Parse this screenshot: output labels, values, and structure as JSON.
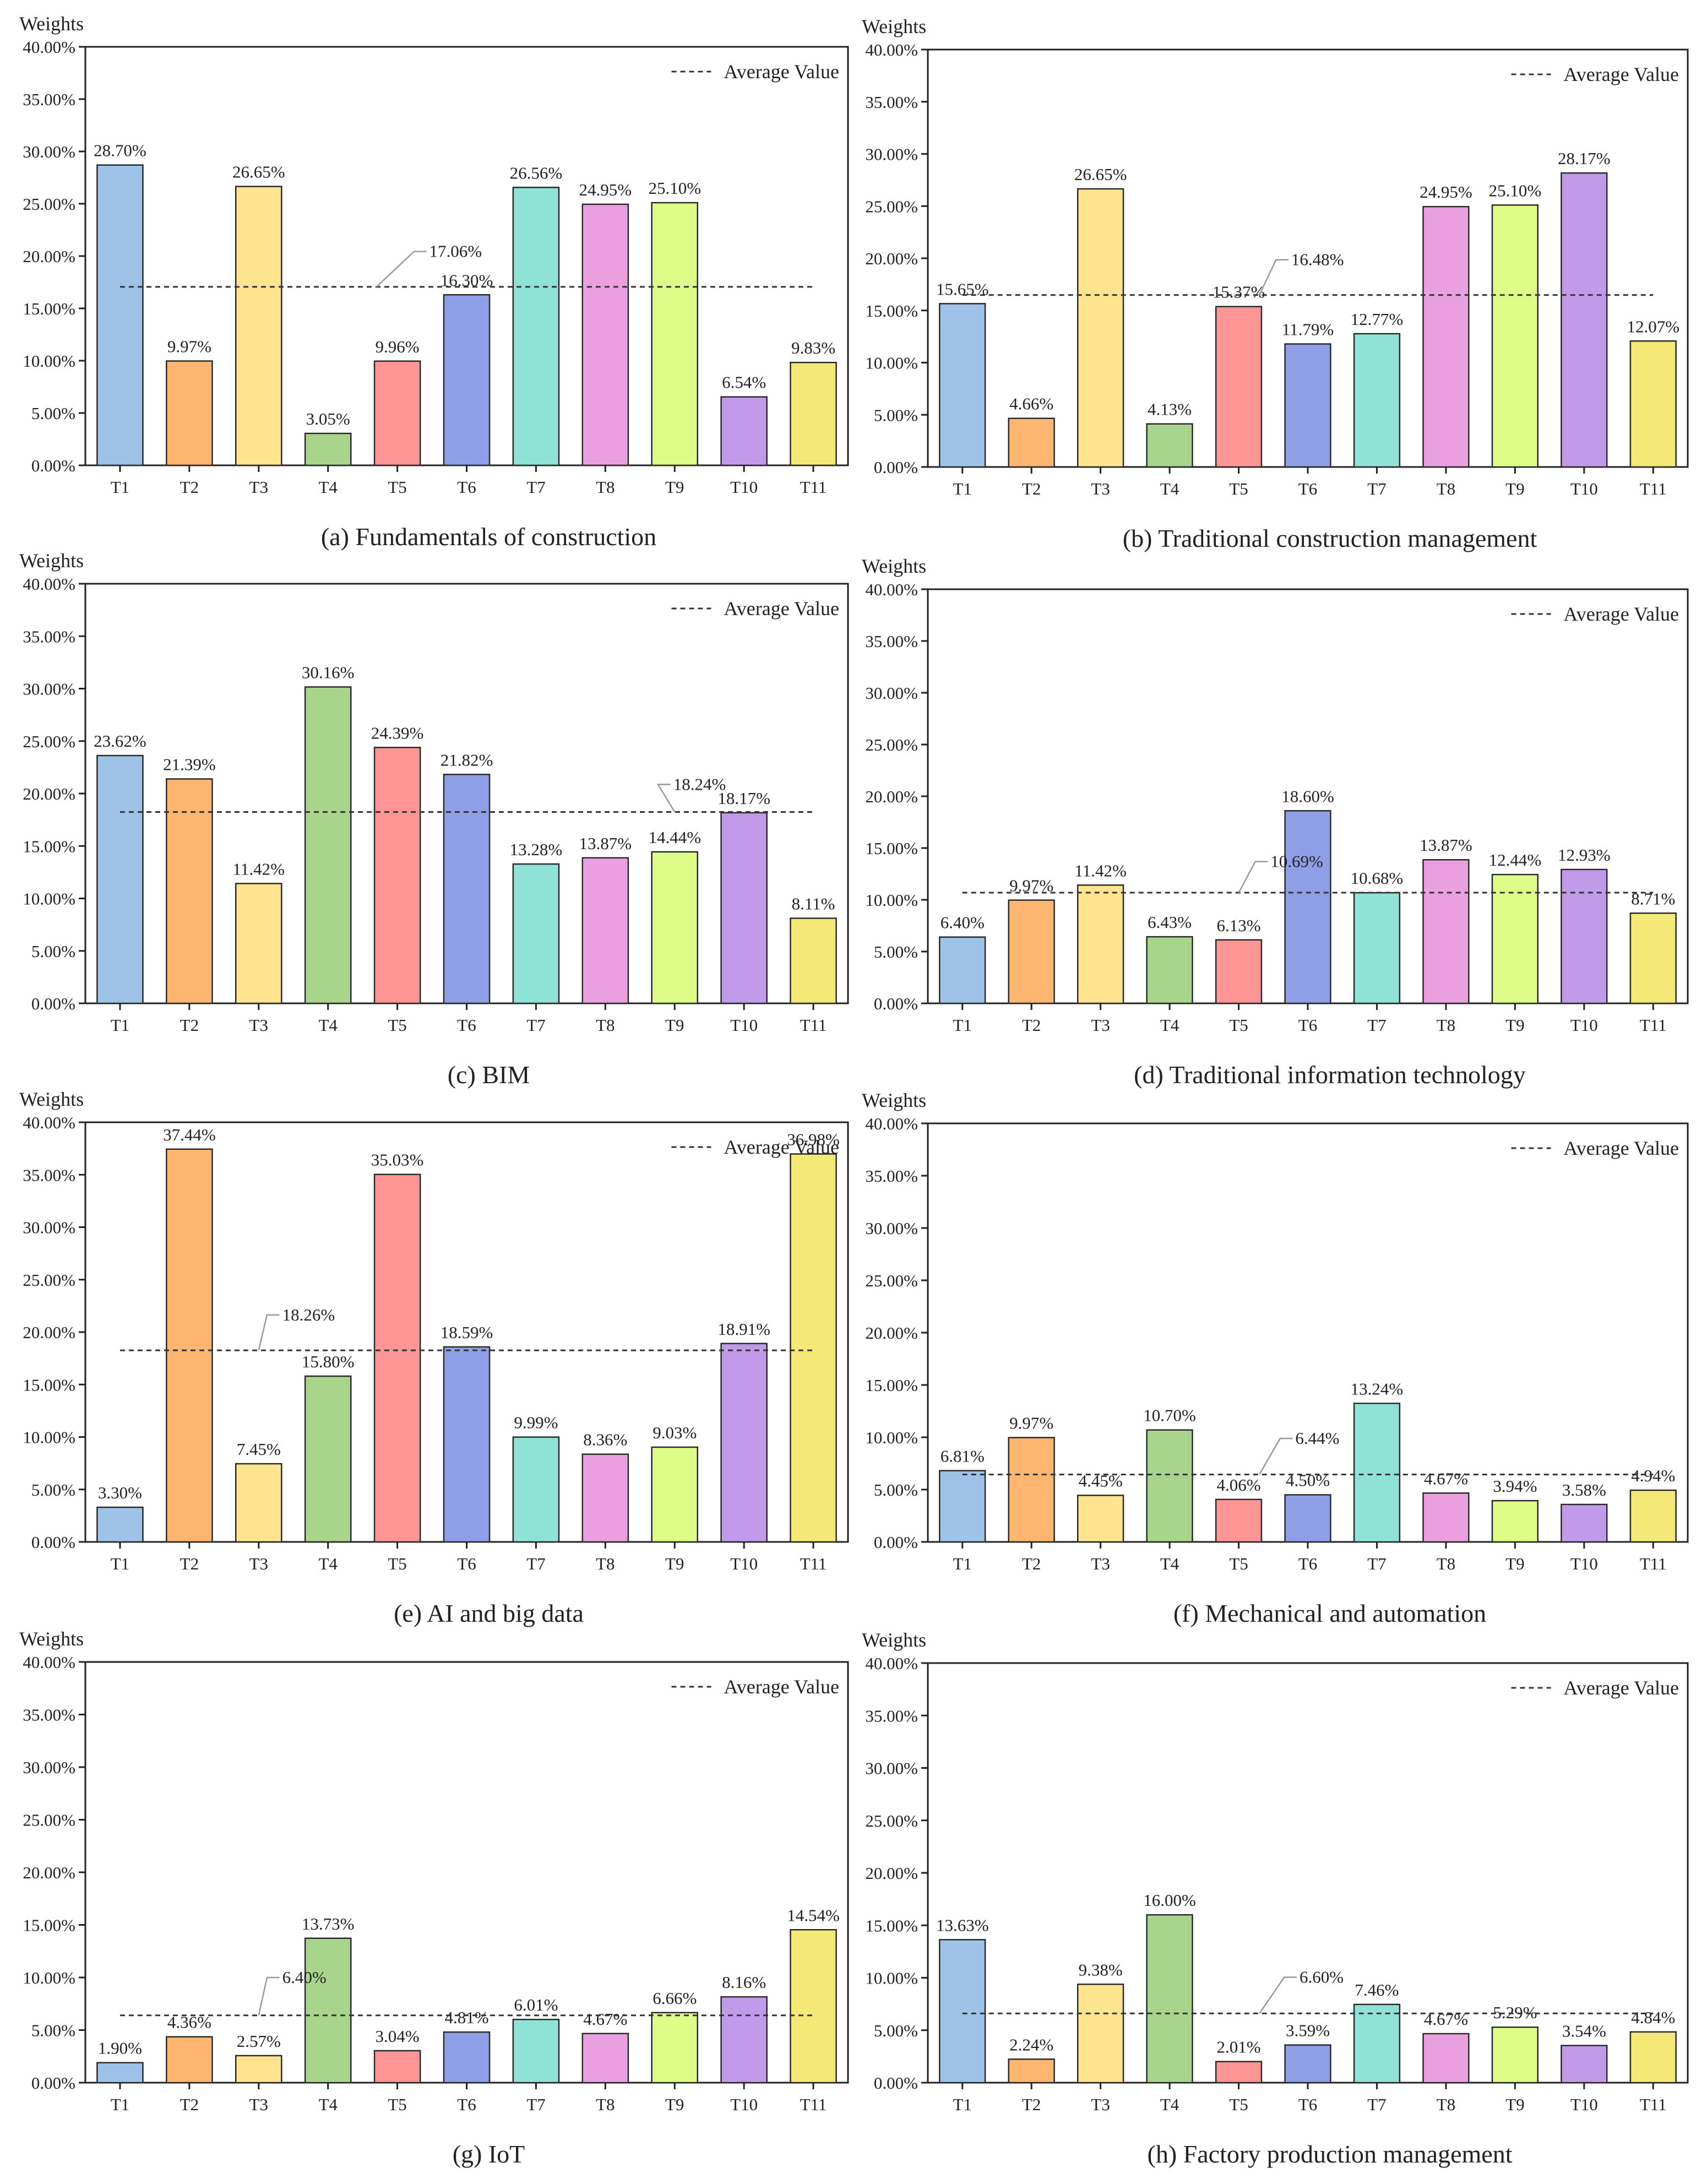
{
  "colors": [
    "#9fc3e8",
    "#fdb56f",
    "#fee48f",
    "#a9d48b",
    "#fe9595",
    "#8e9fe8",
    "#8fe3d6",
    "#eaa0df",
    "#ddfc88",
    "#c19bea",
    "#f4e877"
  ],
  "chart_data": [
    {
      "type": "bar",
      "caption": "(a) Fundamentals of construction",
      "ylabel": "Weights",
      "ylim": [
        0,
        40
      ],
      "yticks": [
        "0.00%",
        "5.00%",
        "10.00%",
        "15.00%",
        "20.00%",
        "25.00%",
        "30.00%",
        "35.00%",
        "40.00%"
      ],
      "categories": [
        "T1",
        "T2",
        "T3",
        "T4",
        "T5",
        "T6",
        "T7",
        "T8",
        "T9",
        "T10",
        "T11"
      ],
      "values": [
        28.7,
        9.97,
        26.65,
        3.05,
        9.96,
        16.3,
        26.56,
        24.95,
        25.1,
        6.54,
        9.83
      ],
      "value_labels": [
        "28.70%",
        "9.97%",
        "26.65%",
        "3.05%",
        "9.96%",
        "16.30%",
        "26.56%",
        "24.95%",
        "25.10%",
        "6.54%",
        "9.83%"
      ],
      "average": 17.06,
      "average_label": "17.06%",
      "legend": "Average Value",
      "legend_position": "top-right"
    },
    {
      "type": "bar",
      "caption": "(b) Traditional construction management",
      "ylabel": "Weights",
      "ylim": [
        0,
        40
      ],
      "yticks": [
        "0.00%",
        "5.00%",
        "10.00%",
        "15.00%",
        "20.00%",
        "25.00%",
        "30.00%",
        "35.00%",
        "40.00%"
      ],
      "categories": [
        "T1",
        "T2",
        "T3",
        "T4",
        "T5",
        "T6",
        "T7",
        "T8",
        "T9",
        "T10",
        "T11"
      ],
      "values": [
        15.65,
        4.66,
        26.65,
        4.13,
        15.37,
        11.79,
        12.77,
        24.95,
        25.1,
        28.17,
        12.07
      ],
      "value_labels": [
        "15.65%",
        "4.66%",
        "26.65%",
        "4.13%",
        "15.37%",
        "11.79%",
        "12.77%",
        "24.95%",
        "25.10%",
        "28.17%",
        "12.07%"
      ],
      "average": 16.48,
      "average_label": "16.48%",
      "legend": "Average Value",
      "legend_position": "top-right"
    },
    {
      "type": "bar",
      "caption": "(c) BIM",
      "ylabel": "Weights",
      "ylim": [
        0,
        40
      ],
      "yticks": [
        "0.00%",
        "5.00%",
        "10.00%",
        "15.00%",
        "20.00%",
        "25.00%",
        "30.00%",
        "35.00%",
        "40.00%"
      ],
      "categories": [
        "T1",
        "T2",
        "T3",
        "T4",
        "T5",
        "T6",
        "T7",
        "T8",
        "T9",
        "T10",
        "T11"
      ],
      "values": [
        23.62,
        21.39,
        11.42,
        30.16,
        24.39,
        21.82,
        13.28,
        13.87,
        14.44,
        18.17,
        8.11
      ],
      "value_labels": [
        "23.62%",
        "21.39%",
        "11.42%",
        "30.16%",
        "24.39%",
        "21.82%",
        "13.28%",
        "13.87%",
        "14.44%",
        "18.17%",
        "8.11%"
      ],
      "average": 18.24,
      "average_label": "18.24%",
      "legend": "Average Value",
      "legend_position": "top-right"
    },
    {
      "type": "bar",
      "caption": "(d) Traditional information technology",
      "ylabel": "Weights",
      "ylim": [
        0,
        40
      ],
      "yticks": [
        "0.00%",
        "5.00%",
        "10.00%",
        "15.00%",
        "20.00%",
        "25.00%",
        "30.00%",
        "35.00%",
        "40.00%"
      ],
      "categories": [
        "T1",
        "T2",
        "T3",
        "T4",
        "T5",
        "T6",
        "T7",
        "T8",
        "T9",
        "T10",
        "T11"
      ],
      "values": [
        6.4,
        9.97,
        11.42,
        6.43,
        6.13,
        18.6,
        10.68,
        13.87,
        12.44,
        12.93,
        8.71
      ],
      "value_labels": [
        "6.40%",
        "9.97%",
        "11.42%",
        "6.43%",
        "6.13%",
        "18.60%",
        "10.68%",
        "13.87%",
        "12.44%",
        "12.93%",
        "8.71%"
      ],
      "average": 10.69,
      "average_label": "10.69%",
      "legend": "Average Value",
      "legend_position": "top-right"
    },
    {
      "type": "bar",
      "caption": "(e) AI and big data",
      "ylabel": "Weights",
      "ylim": [
        0,
        40
      ],
      "yticks": [
        "0.00%",
        "5.00%",
        "10.00%",
        "15.00%",
        "20.00%",
        "25.00%",
        "30.00%",
        "35.00%",
        "40.00%"
      ],
      "categories": [
        "T1",
        "T2",
        "T3",
        "T4",
        "T5",
        "T6",
        "T7",
        "T8",
        "T9",
        "T10",
        "T11"
      ],
      "values": [
        3.3,
        37.44,
        7.45,
        15.8,
        35.03,
        18.59,
        9.99,
        8.36,
        9.03,
        18.91,
        36.98
      ],
      "value_labels": [
        "3.30%",
        "37.44%",
        "7.45%",
        "15.80%",
        "35.03%",
        "18.59%",
        "9.99%",
        "8.36%",
        "9.03%",
        "18.91%",
        "36.98%"
      ],
      "average": 18.26,
      "average_label": "18.26%",
      "legend": "Average Value",
      "legend_position": "top-right"
    },
    {
      "type": "bar",
      "caption": "(f) Mechanical and automation",
      "ylabel": "Weights",
      "ylim": [
        0,
        40
      ],
      "yticks": [
        "0.00%",
        "5.00%",
        "10.00%",
        "15.00%",
        "20.00%",
        "25.00%",
        "30.00%",
        "35.00%",
        "40.00%"
      ],
      "categories": [
        "T1",
        "T2",
        "T3",
        "T4",
        "T5",
        "T6",
        "T7",
        "T8",
        "T9",
        "T10",
        "T11"
      ],
      "values": [
        6.81,
        9.97,
        4.45,
        10.7,
        4.06,
        4.5,
        13.24,
        4.67,
        3.94,
        3.58,
        4.94
      ],
      "value_labels": [
        "6.81%",
        "9.97%",
        "4.45%",
        "10.70%",
        "4.06%",
        "4.50%",
        "13.24%",
        "4.67%",
        "3.94%",
        "3.58%",
        "4.94%"
      ],
      "average": 6.44,
      "average_label": "6.44%",
      "legend": "Average Value",
      "legend_position": "top-right"
    },
    {
      "type": "bar",
      "caption": "(g) IoT",
      "ylabel": "Weights",
      "ylim": [
        0,
        40
      ],
      "yticks": [
        "0.00%",
        "5.00%",
        "10.00%",
        "15.00%",
        "20.00%",
        "25.00%",
        "30.00%",
        "35.00%",
        "40.00%"
      ],
      "categories": [
        "T1",
        "T2",
        "T3",
        "T4",
        "T5",
        "T6",
        "T7",
        "T8",
        "T9",
        "T10",
        "T11"
      ],
      "values": [
        1.9,
        4.36,
        2.57,
        13.73,
        3.04,
        4.81,
        6.01,
        4.67,
        6.66,
        8.16,
        14.54
      ],
      "value_labels": [
        "1.90%",
        "4.36%",
        "2.57%",
        "13.73%",
        "3.04%",
        "4.81%",
        "6.01%",
        "4.67%",
        "6.66%",
        "8.16%",
        "14.54%"
      ],
      "average": 6.4,
      "average_label": "6.40%",
      "legend": "Average Value",
      "legend_position": "top-right"
    },
    {
      "type": "bar",
      "caption": "(h) Factory production management",
      "ylabel": "Weights",
      "ylim": [
        0,
        40
      ],
      "yticks": [
        "0.00%",
        "5.00%",
        "10.00%",
        "15.00%",
        "20.00%",
        "25.00%",
        "30.00%",
        "35.00%",
        "40.00%"
      ],
      "categories": [
        "T1",
        "T2",
        "T3",
        "T4",
        "T5",
        "T6",
        "T7",
        "T8",
        "T9",
        "T10",
        "T11"
      ],
      "values": [
        13.63,
        2.24,
        9.38,
        16.0,
        2.01,
        3.59,
        7.46,
        4.67,
        5.29,
        3.54,
        4.84
      ],
      "value_labels": [
        "13.63%",
        "2.24%",
        "9.38%",
        "16.00%",
        "2.01%",
        "3.59%",
        "7.46%",
        "4.67%",
        "5.29%",
        "3.54%",
        "4.84%"
      ],
      "average": 6.6,
      "average_label": "6.60%",
      "legend": "Average Value",
      "legend_position": "top-right"
    }
  ]
}
